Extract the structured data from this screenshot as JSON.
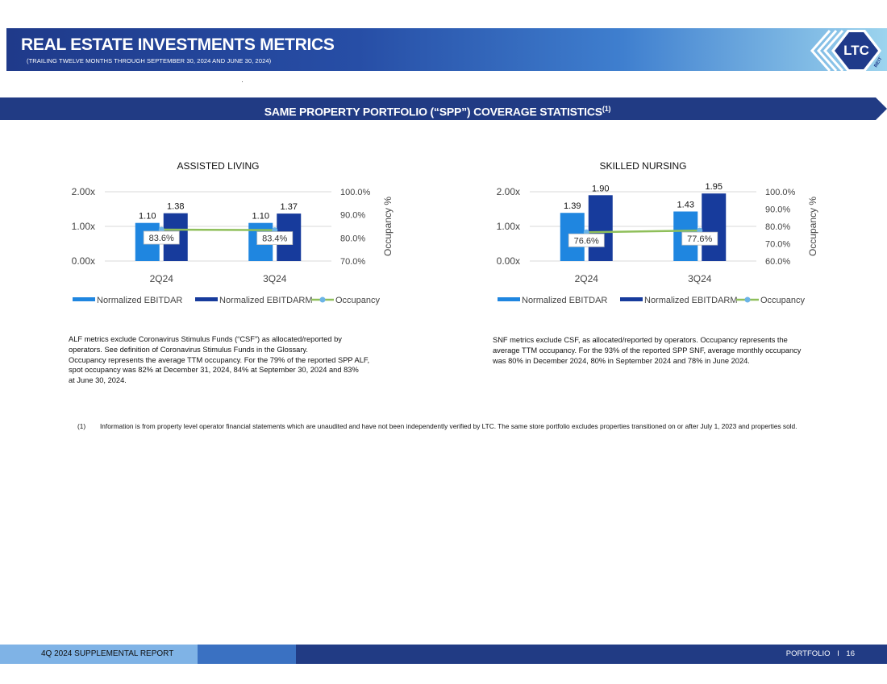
{
  "header": {
    "title": "REAL ESTATE INVESTMENTS METRICS",
    "subtitle": "(TRAILING TWELVE MONTHS THROUGH SEPTEMBER 30, 2024 AND JUNE 30, 2024)",
    "logo_text": "LTC",
    "logo_sub": "REIT"
  },
  "section": {
    "title": "SAME PROPERTY PORTFOLIO (“SPP”) COVERAGE STATISTICS",
    "superscript": "(1)"
  },
  "colors": {
    "ebitdar": "#1f86e0",
    "ebitdarm": "#173b9c",
    "occupancy_line": "#8fbf5a",
    "occupancy_marker": "#6cb4e6",
    "header_dark": "#1f3a8a",
    "banner": "#213b84"
  },
  "chart_data": [
    {
      "type": "bar",
      "title": "ASSISTED LIVING",
      "categories": [
        "2Q24",
        "3Q24"
      ],
      "series": [
        {
          "name": "Normalized EBITDAR",
          "values": [
            1.1,
            1.1
          ],
          "labels": [
            "1.10",
            "1.10"
          ],
          "axis": "left"
        },
        {
          "name": "Normalized EBITDARM",
          "values": [
            1.38,
            1.37
          ],
          "labels": [
            "1.38",
            "1.37"
          ],
          "axis": "left"
        },
        {
          "name": "Occupancy",
          "type": "line",
          "values": [
            83.6,
            83.4
          ],
          "labels": [
            "83.6%",
            "83.4%"
          ],
          "axis": "right"
        }
      ],
      "y_left": {
        "min": 0,
        "max": 2,
        "ticks": [
          0,
          1,
          2
        ],
        "tick_labels": [
          "0.00x",
          "1.00x",
          "2.00x"
        ]
      },
      "y_right": {
        "min": 70,
        "max": 100,
        "ticks": [
          70,
          80,
          90,
          100
        ],
        "tick_labels": [
          "70.0%",
          "80.0%",
          "90.0%",
          "100.0%"
        ],
        "label": "Occupancy %"
      },
      "legend": [
        "Normalized EBITDAR",
        "Normalized EBITDARM",
        "Occupancy"
      ],
      "legend_position": "bottom"
    },
    {
      "type": "bar",
      "title": "SKILLED NURSING",
      "categories": [
        "2Q24",
        "3Q24"
      ],
      "series": [
        {
          "name": "Normalized EBITDAR",
          "values": [
            1.39,
            1.43
          ],
          "labels": [
            "1.39",
            "1.43"
          ],
          "axis": "left"
        },
        {
          "name": "Normalized EBITDARM",
          "values": [
            1.9,
            1.95
          ],
          "labels": [
            "1.90",
            "1.95"
          ],
          "axis": "left"
        },
        {
          "name": "Occupancy",
          "type": "line",
          "values": [
            76.6,
            77.6
          ],
          "labels": [
            "76.6%",
            "77.6%"
          ],
          "axis": "right"
        }
      ],
      "y_left": {
        "min": 0,
        "max": 2,
        "ticks": [
          0,
          1,
          2
        ],
        "tick_labels": [
          "0.00x",
          "1.00x",
          "2.00x"
        ]
      },
      "y_right": {
        "min": 60,
        "max": 100,
        "ticks": [
          60,
          70,
          80,
          90,
          100
        ],
        "tick_labels": [
          "60.0%",
          "70.0%",
          "80.0%",
          "90.0%",
          "100.0%"
        ],
        "label": "Occupancy %"
      },
      "legend": [
        "Normalized EBITDAR",
        "Normalized EBITDARM",
        "Occupancy"
      ],
      "legend_position": "bottom"
    }
  ],
  "notes": {
    "alf": [
      "ALF metrics exclude Coronavirus Stimulus Funds (“CSF”) as allocated/reported by",
      "operators. See definition of Coronavirus Stimulus Funds in the Glossary.",
      "Occupancy represents the average TTM occupancy. For the 79% of the reported SPP ALF,",
      "spot occupancy was 82% at December 31, 2024, 84% at September 30, 2024 and 83%",
      "at June 30, 2024."
    ],
    "snf": [
      "SNF metrics exclude CSF, as allocated/reported by operators. Occupancy represents the",
      "average TTM occupancy. For the 93% of the reported SPP SNF, average monthly occupancy",
      "was 80% in December 2024, 80% in September 2024 and 78% in June 2024."
    ]
  },
  "footnote": {
    "number": "(1)",
    "text": "Information is from property level operator financial statements which are unaudited and have not been independently verified by LTC. The same store portfolio excludes properties transitioned on or after July 1, 2023 and properties sold."
  },
  "footer": {
    "report": "4Q 2024 SUPPLEMENTAL REPORT",
    "section": "PORTFOLIO",
    "separator": "I",
    "page": "16"
  }
}
